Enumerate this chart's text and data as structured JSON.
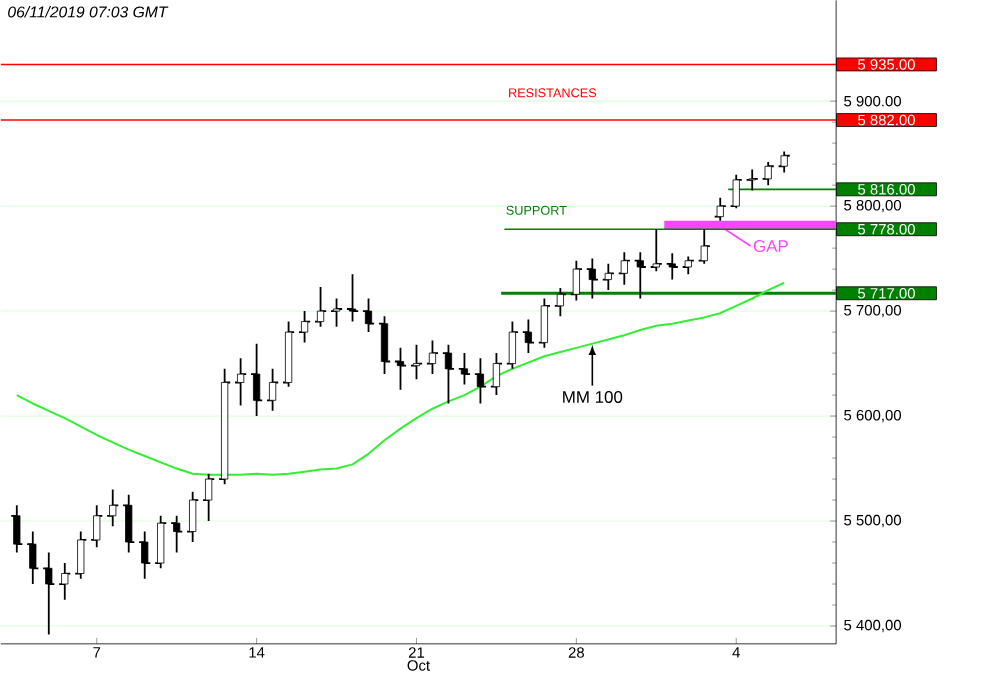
{
  "chart_data": {
    "type": "candlestick",
    "color": "#000000",
    "categories": [
      null,
      null,
      null,
      null,
      null,
      "7",
      null,
      null,
      null,
      null,
      null,
      null,
      null,
      null,
      null,
      "14",
      null,
      null,
      null,
      null,
      null,
      null,
      null,
      null,
      null,
      "21",
      null,
      null,
      null,
      null,
      null,
      null,
      null,
      null,
      null,
      "28",
      null,
      null,
      null,
      null,
      null,
      null,
      null,
      null,
      null,
      "4",
      null,
      null,
      null
    ],
    "xlabel": "Oct",
    "ohlc": [
      [
        5505,
        5515,
        5470,
        5478
      ],
      [
        5478,
        5490,
        5440,
        5455
      ],
      [
        5455,
        5470,
        5392,
        5440
      ],
      [
        5440,
        5460,
        5425,
        5450
      ],
      [
        5450,
        5490,
        5445,
        5482
      ],
      [
        5482,
        5515,
        5475,
        5505
      ],
      [
        5505,
        5530,
        5495,
        5515
      ],
      [
        5515,
        5525,
        5470,
        5480
      ],
      [
        5480,
        5490,
        5445,
        5460
      ],
      [
        5460,
        5505,
        5455,
        5498
      ],
      [
        5498,
        5505,
        5470,
        5490
      ],
      [
        5490,
        5528,
        5480,
        5520
      ],
      [
        5520,
        5545,
        5500,
        5540
      ],
      [
        5540,
        5645,
        5535,
        5632
      ],
      [
        5632,
        5655,
        5610,
        5640
      ],
      [
        5640,
        5669,
        5600,
        5615
      ],
      [
        5615,
        5645,
        5605,
        5632
      ],
      [
        5632,
        5690,
        5628,
        5680
      ],
      [
        5680,
        5700,
        5670,
        5690
      ],
      [
        5690,
        5723,
        5685,
        5700
      ],
      [
        5700,
        5712,
        5685,
        5702
      ],
      [
        5702,
        5735,
        5690,
        5700
      ],
      [
        5700,
        5712,
        5680,
        5688
      ],
      [
        5688,
        5695,
        5640,
        5652
      ],
      [
        5652,
        5665,
        5625,
        5648
      ],
      [
        5648,
        5668,
        5635,
        5650
      ],
      [
        5650,
        5672,
        5640,
        5660
      ],
      [
        5660,
        5668,
        5612,
        5645
      ],
      [
        5645,
        5660,
        5630,
        5640
      ],
      [
        5640,
        5655,
        5612,
        5628
      ],
      [
        5628,
        5660,
        5620,
        5650
      ],
      [
        5650,
        5690,
        5645,
        5680
      ],
      [
        5680,
        5692,
        5660,
        5670
      ],
      [
        5670,
        5712,
        5665,
        5705
      ],
      [
        5705,
        5722,
        5695,
        5716
      ],
      [
        5716,
        5748,
        5710,
        5740
      ],
      [
        5740,
        5750,
        5712,
        5730
      ],
      [
        5730,
        5745,
        5720,
        5736
      ],
      [
        5736,
        5756,
        5725,
        5748
      ],
      [
        5748,
        5756,
        5712,
        5742
      ],
      [
        5742,
        5778,
        5738,
        5745
      ],
      [
        5745,
        5755,
        5730,
        5742
      ],
      [
        5742,
        5752,
        5735,
        5748
      ],
      [
        5748,
        5778,
        5745,
        5762
      ],
      [
        5790,
        5808,
        5786,
        5800
      ],
      [
        5800,
        5830,
        5798,
        5825
      ],
      [
        5825,
        5835,
        5815,
        5826
      ],
      [
        5826,
        5842,
        5820,
        5838
      ],
      [
        5838,
        5852,
        5832,
        5848
      ]
    ],
    "series": [
      {
        "name": "MM 100",
        "type": "line",
        "color": "#33ee33",
        "values": [
          5620,
          5612,
          5605,
          5598,
          5590,
          5582,
          5575,
          5568,
          5562,
          5556,
          5550,
          5545,
          5544,
          5544,
          5544,
          5545,
          5544,
          5545,
          5547,
          5549,
          5550,
          5554,
          5564,
          5577,
          5588,
          5598,
          5607,
          5614,
          5620,
          5628,
          5638,
          5645,
          5651,
          5657,
          5661,
          5665,
          5669,
          5673,
          5677,
          5682,
          5686,
          5688,
          5691,
          5694,
          5698,
          5705,
          5712,
          5720,
          5727
        ]
      }
    ],
    "ylim": [
      5383,
      5996
    ],
    "yticks": [
      {
        "value": 5400,
        "label": "5 400,00"
      },
      {
        "value": 5500,
        "label": "5 500,00"
      },
      {
        "value": 5600,
        "label": "5 600,00"
      },
      {
        "value": 5700,
        "label": "5 700,00"
      },
      {
        "value": 5800,
        "label": "5 800,00"
      },
      {
        "value": 5900,
        "label": "5 900.00"
      }
    ],
    "grid": "y",
    "ref_lines": [
      {
        "axis": "y",
        "value": 5935,
        "label": "5 935.00",
        "color": "#ff0000"
      },
      {
        "axis": "y",
        "value": 5882,
        "label": "5 882.00",
        "color": "#ff0000"
      },
      {
        "axis": "y",
        "value": 5816,
        "label": "5 816.00",
        "color": "#008000"
      },
      {
        "axis": "y",
        "value": 5778,
        "label": "5 778.00",
        "color": "#008000"
      },
      {
        "axis": "y",
        "value": 5717,
        "label": "5 717.00",
        "color": "#008000"
      }
    ],
    "bands": [
      {
        "axis": "y",
        "from": 5778,
        "to": 5786,
        "label": "GAP",
        "color": "#ff44ff"
      }
    ],
    "annotations": [
      "06/11/2019  07:03 GMT",
      "RESISTANCES",
      "SUPPORT"
    ]
  }
}
